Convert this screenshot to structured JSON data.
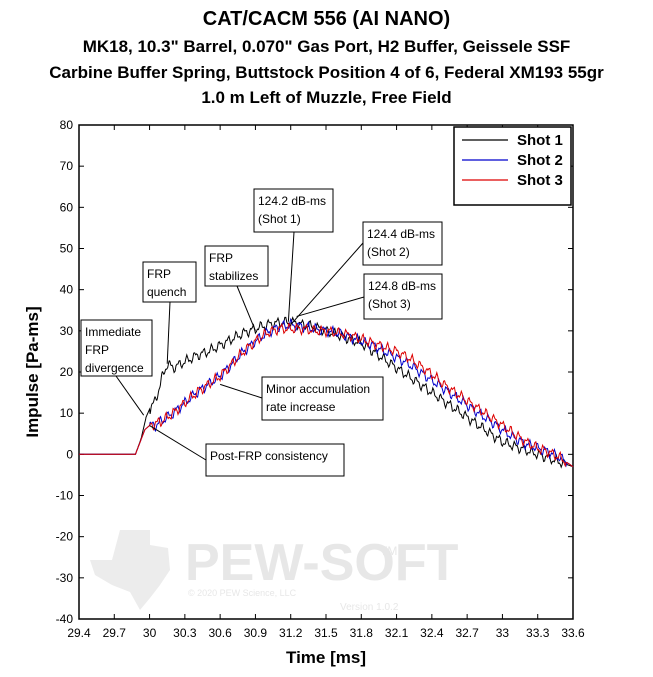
{
  "title_lines": [
    "CAT/CACM 556 (AI NANO)",
    "MK18, 10.3\" Barrel, 0.070\" Gas Port, H2 Buffer, Geissele SSF",
    "Carbine Buffer Spring, Buttstock Position 4 of 6, Federal XM193 55gr",
    "1.0 m Left of Muzzle, Free Field"
  ],
  "colors": {
    "shot1": "#000000",
    "shot2": "#0000cc",
    "shot3": "#dd0000"
  },
  "watermark": {
    "text": "PEW-SOFT",
    "tm": "TM",
    "copyright": "© 2020 PEW Science, LLC",
    "version": "Version 1.0.2"
  },
  "chart_data": {
    "type": "line",
    "xlabel": "Time [ms]",
    "ylabel": "Impulse [Pa-ms]",
    "xlim": [
      29.4,
      33.6
    ],
    "ylim": [
      -40,
      80
    ],
    "xticks": [
      "29.4",
      "29.7",
      "30",
      "30.3",
      "30.6",
      "30.9",
      "31.2",
      "31.5",
      "31.8",
      "32.1",
      "32.4",
      "32.7",
      "33",
      "33.3",
      "33.6"
    ],
    "yticks": [
      "80",
      "70",
      "60",
      "50",
      "40",
      "30",
      "20",
      "10",
      "0",
      "-10",
      "-20",
      "-30",
      "-40"
    ],
    "legend": [
      "Shot 1",
      "Shot 2",
      "Shot 3"
    ],
    "legend_position": "top-right",
    "series": [
      {
        "name": "Shot 1",
        "x": [
          29.4,
          29.88,
          29.93,
          29.97,
          30.0,
          30.05,
          30.1,
          30.15,
          30.2,
          30.3,
          30.4,
          30.5,
          30.6,
          30.7,
          30.8,
          30.9,
          31.0,
          31.1,
          31.2,
          31.3,
          31.4,
          31.5,
          31.6,
          31.7,
          31.8,
          31.9,
          32.0,
          32.1,
          32.2,
          32.3,
          32.4,
          32.5,
          32.6,
          32.7,
          32.8,
          32.9,
          33.0,
          33.1,
          33.2,
          33.3,
          33.4,
          33.5,
          33.6
        ],
        "y": [
          0,
          0,
          4,
          9,
          11,
          13,
          18,
          22,
          21,
          22.5,
          24,
          25,
          26.5,
          28,
          29.5,
          30.5,
          31.5,
          32,
          32.2,
          31.5,
          31,
          30,
          29,
          28,
          27,
          25,
          23,
          21,
          19,
          17,
          15,
          13,
          11,
          9,
          7,
          5,
          3,
          2,
          1,
          0,
          -1,
          -2,
          -3
        ]
      },
      {
        "name": "Shot 2",
        "x": [
          29.4,
          29.88,
          29.92,
          29.96,
          30.0,
          30.05,
          30.1,
          30.2,
          30.3,
          30.4,
          30.5,
          30.6,
          30.7,
          30.8,
          30.9,
          31.0,
          31.1,
          31.2,
          31.3,
          31.4,
          31.5,
          31.6,
          31.7,
          31.8,
          31.9,
          32.0,
          32.1,
          32.2,
          32.3,
          32.4,
          32.5,
          32.6,
          32.7,
          32.8,
          32.9,
          33.0,
          33.1,
          33.2,
          33.3,
          33.4,
          33.5,
          33.6
        ],
        "y": [
          0,
          0,
          3,
          6,
          7,
          7,
          8,
          10,
          12.5,
          15,
          17,
          19,
          22,
          25,
          27.5,
          29.5,
          31,
          31.5,
          31,
          30.5,
          30,
          29.5,
          28.5,
          27.5,
          26.5,
          25,
          23.5,
          22,
          20,
          18,
          16,
          14,
          12,
          10,
          8,
          6,
          4,
          2.5,
          1.5,
          0.5,
          -1,
          -3
        ]
      },
      {
        "name": "Shot 3",
        "x": [
          29.4,
          29.88,
          29.92,
          29.96,
          30.0,
          30.05,
          30.1,
          30.2,
          30.3,
          30.4,
          30.5,
          30.6,
          30.7,
          30.8,
          30.9,
          31.0,
          31.1,
          31.2,
          31.3,
          31.4,
          31.5,
          31.6,
          31.7,
          31.8,
          31.9,
          32.0,
          32.1,
          32.2,
          32.3,
          32.4,
          32.5,
          32.6,
          32.7,
          32.8,
          32.9,
          33.0,
          33.1,
          33.2,
          33.3,
          33.4,
          33.5,
          33.6
        ],
        "y": [
          0,
          0,
          3,
          6,
          7,
          7.5,
          8,
          10,
          12.5,
          15,
          17,
          19,
          22,
          25,
          27.5,
          29.5,
          30.5,
          30.5,
          30.5,
          30,
          30,
          29.5,
          29,
          28,
          27,
          26,
          25,
          23.5,
          21.5,
          19.5,
          17,
          15,
          13,
          11,
          9,
          7,
          5,
          3,
          1.5,
          0.5,
          -1,
          -3
        ]
      }
    ],
    "annotations": [
      {
        "lines": [
          "Immediate",
          "FRP",
          "divergence"
        ],
        "x": 29.95,
        "y": 9.5
      },
      {
        "lines": [
          "FRP",
          "quench"
        ],
        "x": 30.15,
        "y": 22
      },
      {
        "lines": [
          "FRP",
          "stabilizes"
        ],
        "x": 30.9,
        "y": 30
      },
      {
        "lines": [
          "124.2 dB-ms",
          "(Shot 1)"
        ],
        "x": 31.18,
        "y": 32.2
      },
      {
        "lines": [
          "124.4 dB-ms",
          "(Shot 2)"
        ],
        "x": 31.2,
        "y": 31.5
      },
      {
        "lines": [
          "124.8 dB-ms",
          "(Shot 3)"
        ],
        "x": 31.25,
        "y": 33.5
      },
      {
        "lines": [
          "Minor accumulation",
          "rate increase"
        ],
        "x": 30.6,
        "y": 17
      },
      {
        "lines": [
          "Post-FRP consistency"
        ],
        "x": 30.0,
        "y": 7
      }
    ]
  }
}
